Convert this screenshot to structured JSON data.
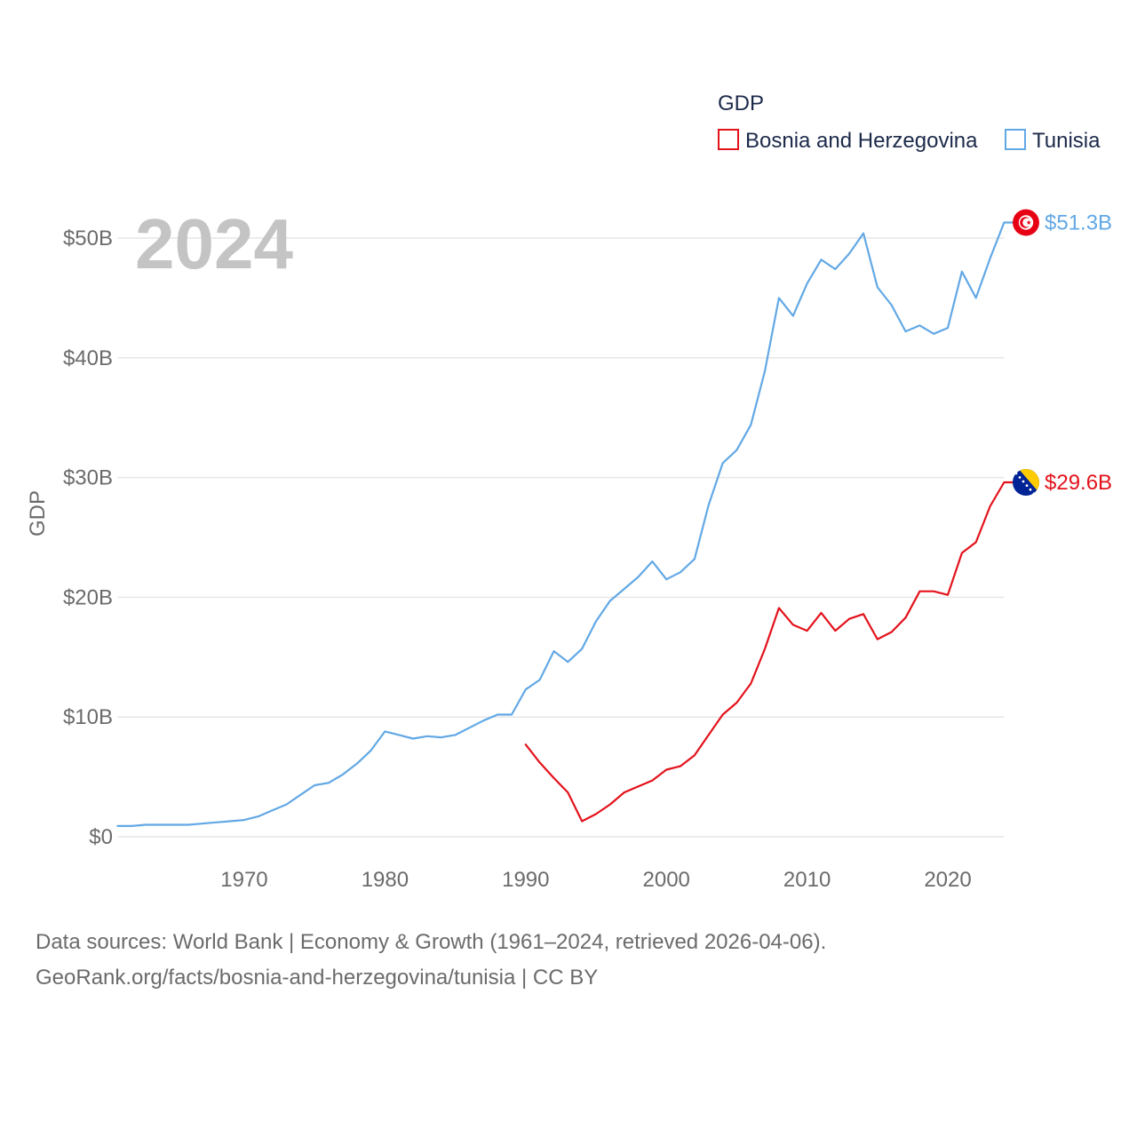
{
  "chart_data": {
    "type": "line",
    "year_label": "2024",
    "ylabel": "GDP",
    "xlabel": "",
    "xlim": [
      1961,
      2024
    ],
    "ylim": [
      0,
      50
    ],
    "x_ticks": [
      1970,
      1980,
      1990,
      2000,
      2010,
      2020
    ],
    "x_tick_labels": [
      "1970",
      "1980",
      "1990",
      "2000",
      "2010",
      "2020"
    ],
    "y_ticks": [
      0,
      10,
      20,
      30,
      40,
      50
    ],
    "y_tick_labels": [
      "$0",
      "$10B",
      "$20B",
      "$30B",
      "$40B",
      "$50B"
    ],
    "grid": true,
    "legend": {
      "title": "GDP",
      "placement": "top-right"
    },
    "x": [
      1961,
      1962,
      1963,
      1964,
      1965,
      1966,
      1967,
      1968,
      1969,
      1970,
      1971,
      1972,
      1973,
      1974,
      1975,
      1976,
      1977,
      1978,
      1979,
      1980,
      1981,
      1982,
      1983,
      1984,
      1985,
      1986,
      1987,
      1988,
      1989,
      1990,
      1991,
      1992,
      1993,
      1994,
      1995,
      1996,
      1997,
      1998,
      1999,
      2000,
      2001,
      2002,
      2003,
      2004,
      2005,
      2006,
      2007,
      2008,
      2009,
      2010,
      2011,
      2012,
      2013,
      2014,
      2015,
      2016,
      2017,
      2018,
      2019,
      2020,
      2021,
      2022,
      2023,
      2024
    ],
    "series": [
      {
        "name": "Bosnia and Herzegovina",
        "color": "#e3121b",
        "end_label": "$29.6B",
        "flag_icon": "bosnia-flag-icon",
        "values": [
          null,
          null,
          null,
          null,
          null,
          null,
          null,
          null,
          null,
          null,
          null,
          null,
          null,
          null,
          null,
          null,
          null,
          null,
          null,
          null,
          null,
          null,
          null,
          null,
          null,
          null,
          null,
          null,
          null,
          7.7,
          6.2,
          4.9,
          3.7,
          1.3,
          1.9,
          2.7,
          3.7,
          4.2,
          4.7,
          5.6,
          5.9,
          6.8,
          8.5,
          10.2,
          11.2,
          12.8,
          15.7,
          19.1,
          17.7,
          17.2,
          18.7,
          17.2,
          18.2,
          18.6,
          16.5,
          17.1,
          18.3,
          20.5,
          20.5,
          20.2,
          23.7,
          24.6,
          27.6,
          29.6
        ]
      },
      {
        "name": "Tunisia",
        "color": "#62a8e5",
        "end_label": "$51.3B",
        "flag_icon": "tunisia-flag-icon",
        "values": [
          0.9,
          0.9,
          1.0,
          1.0,
          1.0,
          1.0,
          1.1,
          1.2,
          1.3,
          1.4,
          1.7,
          2.2,
          2.7,
          3.5,
          4.3,
          4.5,
          5.2,
          6.1,
          7.2,
          8.8,
          8.5,
          8.2,
          8.4,
          8.3,
          8.5,
          9.1,
          9.7,
          10.2,
          10.2,
          12.3,
          13.1,
          15.5,
          14.6,
          15.7,
          18.0,
          19.7,
          20.7,
          21.7,
          23.0,
          21.5,
          22.1,
          23.2,
          27.7,
          31.2,
          32.3,
          34.4,
          38.9,
          45.0,
          43.5,
          46.2,
          48.2,
          47.4,
          48.7,
          50.4,
          45.9,
          44.4,
          42.2,
          42.7,
          42.0,
          42.5,
          47.2,
          45.0,
          48.3,
          51.3
        ]
      }
    ]
  },
  "source": {
    "line1": "Data sources: World Bank | Economy & Growth (1961–2024, retrieved 2026-04-06).",
    "line2": "GeoRank.org/facts/bosnia-and-herzegovina/tunisia | CC BY"
  }
}
